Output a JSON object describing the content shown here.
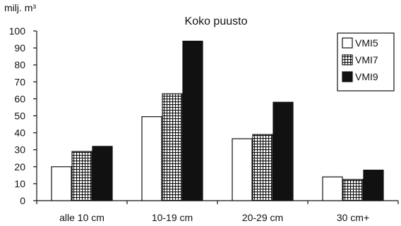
{
  "chart_data": {
    "type": "bar",
    "title": "Koko puusto",
    "ylabel": "milj. m³",
    "xlabel": "",
    "ylim": [
      0,
      100
    ],
    "yticks": [
      0,
      10,
      20,
      30,
      40,
      50,
      60,
      70,
      80,
      90,
      100
    ],
    "categories": [
      "alle 10 cm",
      "10-19 cm",
      "20-29 cm",
      "30 cm+"
    ],
    "series": [
      {
        "name": "VMI5",
        "values": [
          20,
          49.5,
          36.5,
          14
        ],
        "fill": "white"
      },
      {
        "name": "VMI7",
        "values": [
          29,
          63,
          39,
          12.5
        ],
        "fill": "grid"
      },
      {
        "name": "VMI9",
        "values": [
          32,
          94,
          58,
          18
        ],
        "fill": "black"
      }
    ],
    "legend_position": "top-right",
    "grid": false
  }
}
